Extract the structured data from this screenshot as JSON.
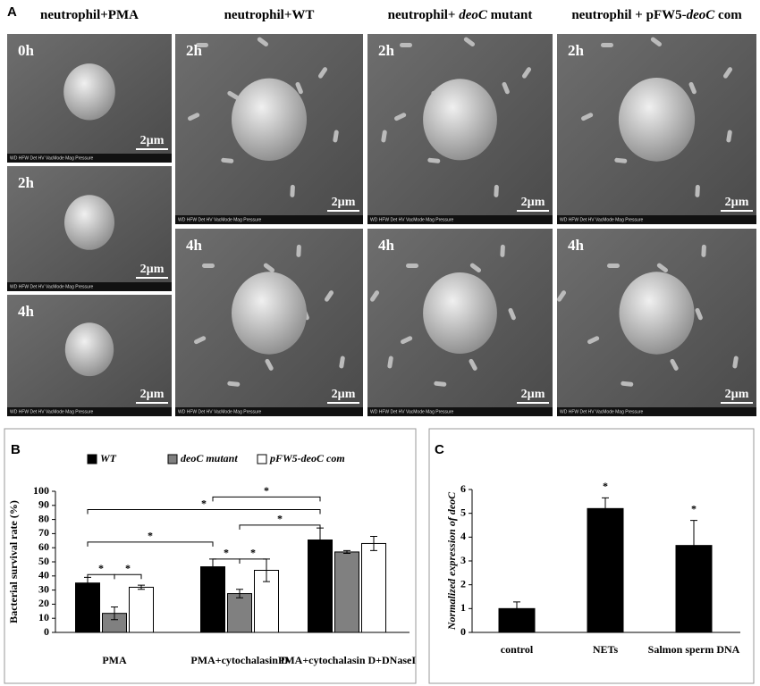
{
  "panel_a": {
    "label": "A",
    "scale_bar": "2µm",
    "info_bar": "WD HFW Det HV VacMode Mag Pressure",
    "columns": [
      {
        "header": [
          "neutrophil+PMA"
        ],
        "images": [
          {
            "time": "0h"
          },
          {
            "time": "2h"
          },
          {
            "time": "4h"
          }
        ]
      },
      {
        "header": [
          "neutrophil+WT"
        ],
        "images": [
          {
            "time": "2h"
          },
          {
            "time": "4h"
          }
        ]
      },
      {
        "header": [
          "neutrophil+ ",
          "deoC",
          " mutant"
        ],
        "images": [
          {
            "time": "2h"
          },
          {
            "time": "4h"
          }
        ]
      },
      {
        "header": [
          "neutrophil + pFW5-",
          "deoC",
          " com"
        ],
        "images": [
          {
            "time": "2h"
          },
          {
            "time": "4h"
          }
        ]
      }
    ]
  },
  "chart_data": [
    {
      "type": "bar",
      "panel": "B",
      "y_label": "Bacterial survival rate (%)",
      "categories": [
        "PMA",
        "PMA+cytochalasin D",
        "PMA+cytochalasin D+DNaseI"
      ],
      "series": [
        {
          "name": "WT",
          "color": "#000000",
          "values": [
            35,
            46.5,
            65.5
          ],
          "errors": [
            4,
            5.5,
            8.5
          ]
        },
        {
          "name": "deoC mutant",
          "color": "#808080",
          "values": [
            13.5,
            27.5,
            57
          ],
          "errors": [
            4.5,
            3,
            1
          ]
        },
        {
          "name": "pFW5-deoC com",
          "color": "#ffffff",
          "values": [
            32,
            44,
            63
          ],
          "errors": [
            1.5,
            8,
            5
          ]
        }
      ],
      "ylim": [
        0,
        100
      ],
      "yticks": [
        0,
        10,
        20,
        30,
        40,
        50,
        60,
        70,
        80,
        90,
        100
      ],
      "significance": [
        "*",
        "*",
        "*",
        "*",
        "*",
        "*",
        "*",
        "*"
      ]
    },
    {
      "type": "bar",
      "panel": "C",
      "y_label": "Normalized expression of deoC",
      "categories": [
        "control",
        "NETs",
        "Salmon sperm DNA"
      ],
      "series": [
        {
          "color": "#000000",
          "values": [
            1,
            5.2,
            3.65
          ],
          "errors": [
            0.28,
            0.45,
            1.05
          ]
        }
      ],
      "ylim": [
        0,
        6
      ],
      "yticks": [
        0,
        1,
        2,
        3,
        4,
        5,
        6
      ],
      "significance": [
        "*",
        "*"
      ]
    }
  ]
}
